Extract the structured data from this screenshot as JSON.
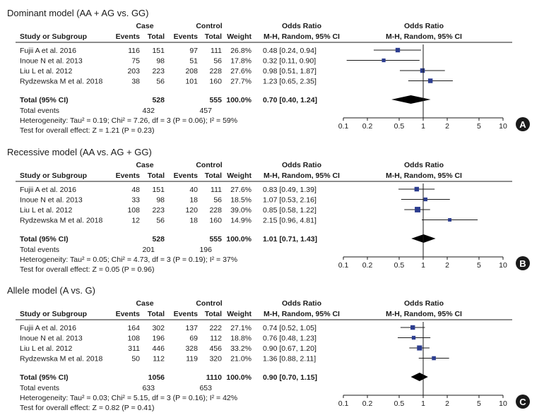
{
  "colors": {
    "marker": "#2c3d8f",
    "diamond": "#000000",
    "text": "#1a1a1a",
    "badge": "#1a1a1a"
  },
  "headers": {
    "case": "Case",
    "control": "Control",
    "study": "Study or Subgroup",
    "events": "Events",
    "total": "Total",
    "weight": "Weight",
    "or_title": "Odds Ratio",
    "or_method": "M-H, Random, 95% CI"
  },
  "chart_data": [
    {
      "type": "forest",
      "panel": "A",
      "title": "Dominant model (AA + AG vs. GG)",
      "xscale": "log",
      "xlim": [
        0.1,
        10
      ],
      "xticks": [
        "0.1",
        "0.2",
        "0.5",
        "1",
        "2",
        "5",
        "10"
      ],
      "xtick_values": [
        0.1,
        0.2,
        0.5,
        1,
        2,
        5,
        10
      ],
      "studies": [
        {
          "name": "Fujii A et al. 2016",
          "case_events": "116",
          "case_total": "151",
          "control_events": "97",
          "control_total": "111",
          "weight": "26.8%",
          "or_text": "0.48 [0.24, 0.94]",
          "or": 0.48,
          "lo": 0.24,
          "hi": 0.94
        },
        {
          "name": "Inoue N et al. 2013",
          "case_events": "75",
          "case_total": "98",
          "control_events": "51",
          "control_total": "56",
          "weight": "17.8%",
          "or_text": "0.32 [0.11, 0.90]",
          "or": 0.32,
          "lo": 0.11,
          "hi": 0.9
        },
        {
          "name": "Liu L et al. 2012",
          "case_events": "203",
          "case_total": "223",
          "control_events": "208",
          "control_total": "228",
          "weight": "27.6%",
          "or_text": "0.98 [0.51, 1.87]",
          "or": 0.98,
          "lo": 0.51,
          "hi": 1.87
        },
        {
          "name": "Rydzewska M et al. 2018",
          "case_events": "38",
          "case_total": "56",
          "control_events": "101",
          "control_total": "160",
          "weight": "27.7%",
          "or_text": "1.23 [0.65, 2.35]",
          "or": 1.23,
          "lo": 0.65,
          "hi": 2.35
        }
      ],
      "total": {
        "label": "Total (95% CI)",
        "case_total": "528",
        "control_total": "555",
        "weight": "100.0%",
        "or_text": "0.70 [0.40, 1.24]",
        "or": 0.7,
        "lo": 0.4,
        "hi": 1.24
      },
      "total_events": {
        "label": "Total events",
        "case": "432",
        "control": "457"
      },
      "heterogeneity": "Heterogeneity: Tau² = 0.19; Chi² = 7.26, df = 3 (P = 0.06); I² = 59%",
      "overall_effect": "Test for overall effect: Z = 1.21 (P = 0.23)"
    },
    {
      "type": "forest",
      "panel": "B",
      "title": "Recessive model (AA vs. AG + GG)",
      "xscale": "log",
      "xlim": [
        0.1,
        10
      ],
      "xticks": [
        "0.1",
        "0.2",
        "0.5",
        "1",
        "2",
        "5",
        "10"
      ],
      "xtick_values": [
        0.1,
        0.2,
        0.5,
        1,
        2,
        5,
        10
      ],
      "studies": [
        {
          "name": "Fujii A et al. 2016",
          "case_events": "48",
          "case_total": "151",
          "control_events": "40",
          "control_total": "111",
          "weight": "27.6%",
          "or_text": "0.83 [0.49, 1.39]",
          "or": 0.83,
          "lo": 0.49,
          "hi": 1.39
        },
        {
          "name": "Inoue N et al. 2013",
          "case_events": "33",
          "case_total": "98",
          "control_events": "18",
          "control_total": "56",
          "weight": "18.5%",
          "or_text": "1.07 [0.53, 2.16]",
          "or": 1.07,
          "lo": 0.53,
          "hi": 2.16
        },
        {
          "name": "Liu L et al. 2012",
          "case_events": "108",
          "case_total": "223",
          "control_events": "120",
          "control_total": "228",
          "weight": "39.0%",
          "or_text": "0.85 [0.58, 1.22]",
          "or": 0.85,
          "lo": 0.58,
          "hi": 1.22
        },
        {
          "name": "Rydzewska M et al. 2018",
          "case_events": "12",
          "case_total": "56",
          "control_events": "18",
          "control_total": "160",
          "weight": "14.9%",
          "or_text": "2.15 [0.96, 4.81]",
          "or": 2.15,
          "lo": 0.96,
          "hi": 4.81
        }
      ],
      "total": {
        "label": "Total (95% CI)",
        "case_total": "528",
        "control_total": "555",
        "weight": "100.0%",
        "or_text": "1.01 [0.71, 1.43]",
        "or": 1.01,
        "lo": 0.71,
        "hi": 1.43
      },
      "total_events": {
        "label": "Total events",
        "case": "201",
        "control": "196"
      },
      "heterogeneity": "Heterogeneity: Tau² = 0.05; Chi² = 4.73, df = 3 (P = 0.19); I² = 37%",
      "overall_effect": "Test for overall effect: Z = 0.05 (P = 0.96)"
    },
    {
      "type": "forest",
      "panel": "C",
      "title": "Allele model (A vs. G)",
      "xscale": "log",
      "xlim": [
        0.1,
        10
      ],
      "xticks": [
        "0.1",
        "0.2",
        "0.5",
        "1",
        "2",
        "5",
        "10"
      ],
      "xtick_values": [
        0.1,
        0.2,
        0.5,
        1,
        2,
        5,
        10
      ],
      "studies": [
        {
          "name": "Fujii A et al. 2016",
          "case_events": "164",
          "case_total": "302",
          "control_events": "137",
          "control_total": "222",
          "weight": "27.1%",
          "or_text": "0.74 [0.52, 1.05]",
          "or": 0.74,
          "lo": 0.52,
          "hi": 1.05
        },
        {
          "name": "Inoue N et al. 2013",
          "case_events": "108",
          "case_total": "196",
          "control_events": "69",
          "control_total": "112",
          "weight": "18.8%",
          "or_text": "0.76 [0.48, 1.23]",
          "or": 0.76,
          "lo": 0.48,
          "hi": 1.23
        },
        {
          "name": "Liu L et al. 2012",
          "case_events": "311",
          "case_total": "446",
          "control_events": "328",
          "control_total": "456",
          "weight": "33.2%",
          "or_text": "0.90 [0.67, 1.20]",
          "or": 0.9,
          "lo": 0.67,
          "hi": 1.2
        },
        {
          "name": "Rydzewska M et al. 2018",
          "case_events": "50",
          "case_total": "112",
          "control_events": "119",
          "control_total": "320",
          "weight": "21.0%",
          "or_text": "1.36 [0.88, 2.11]",
          "or": 1.36,
          "lo": 0.88,
          "hi": 2.11
        }
      ],
      "total": {
        "label": "Total (95% CI)",
        "case_total": "1056",
        "control_total": "1110",
        "weight": "100.0%",
        "or_text": "0.90 [0.70, 1.15]",
        "or": 0.9,
        "lo": 0.7,
        "hi": 1.15
      },
      "total_events": {
        "label": "Total events",
        "case": "633",
        "control": "653"
      },
      "heterogeneity": "Heterogeneity: Tau² = 0.03; Chi² = 5.15, df = 3 (P = 0.16); I² = 42%",
      "overall_effect": "Test for overall effect: Z = 0.82 (P = 0.41)"
    }
  ]
}
